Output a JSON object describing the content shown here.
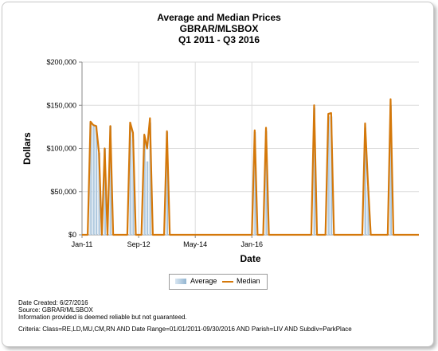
{
  "title_lines": [
    "Average and Median Prices",
    "GBRAR/MLSBOX",
    "Q1 2011 - Q3 2016"
  ],
  "chart_data": {
    "type": "bar",
    "title": "Average and Median Prices",
    "subtitle": [
      "GBRAR/MLSBOX",
      "Q1 2011 - Q3 2016"
    ],
    "xlabel": "Date",
    "ylabel": "Dollars",
    "ylim": [
      0,
      200000
    ],
    "y_ticks": [
      "$0",
      "$50,000",
      "$100,000",
      "$150,000",
      "$200,000"
    ],
    "x_ticks": [
      "Jan-11",
      "Sep-12",
      "May-14",
      "Jan-16"
    ],
    "grid": true,
    "legend_position": "bottom",
    "period_start": "Jan-11",
    "months_per_step": 1,
    "series": [
      {
        "name": "Average",
        "style": "bar",
        "color": "#93b5d1",
        "values": [
          0,
          0,
          0,
          130000,
          126000,
          126000,
          95000,
          0,
          100000,
          0,
          126000,
          0,
          0,
          0,
          0,
          0,
          0,
          127000,
          110000,
          0,
          0,
          0,
          115000,
          85000,
          130000,
          0,
          0,
          0,
          0,
          0,
          119000,
          0,
          0,
          0,
          0,
          0,
          0,
          0,
          0,
          0,
          0,
          0,
          0,
          0,
          0,
          0,
          0,
          0,
          0,
          0,
          0,
          0,
          0,
          0,
          0,
          0,
          0,
          0,
          0,
          0,
          0,
          119000,
          0,
          0,
          0,
          120000,
          0,
          0,
          0,
          0,
          0,
          0,
          0,
          0,
          0,
          0,
          0,
          0,
          0,
          0,
          0,
          0,
          147000,
          0,
          0,
          0,
          0,
          137000,
          137000,
          0,
          0,
          0,
          0,
          0,
          0,
          0,
          0,
          0,
          0,
          0,
          124000,
          55000,
          0,
          0,
          0,
          0,
          0,
          0,
          0,
          150000,
          0,
          0,
          0,
          0,
          0,
          0,
          0,
          0,
          0,
          0
        ]
      },
      {
        "name": "Median",
        "style": "line",
        "color": "#d4780a",
        "values": [
          0,
          0,
          0,
          131000,
          127000,
          126000,
          95000,
          0,
          100000,
          0,
          126000,
          0,
          0,
          0,
          0,
          0,
          0,
          130000,
          118000,
          0,
          0,
          0,
          116000,
          100000,
          135000,
          0,
          0,
          0,
          0,
          0,
          120000,
          0,
          0,
          0,
          0,
          0,
          0,
          0,
          0,
          0,
          0,
          0,
          0,
          0,
          0,
          0,
          0,
          0,
          0,
          0,
          0,
          0,
          0,
          0,
          0,
          0,
          0,
          0,
          0,
          0,
          0,
          121000,
          0,
          0,
          0,
          124000,
          0,
          0,
          0,
          0,
          0,
          0,
          0,
          0,
          0,
          0,
          0,
          0,
          0,
          0,
          0,
          0,
          150000,
          0,
          0,
          0,
          0,
          140000,
          141000,
          0,
          0,
          0,
          0,
          0,
          0,
          0,
          0,
          0,
          0,
          0,
          129000,
          60000,
          0,
          0,
          0,
          0,
          0,
          0,
          0,
          157000,
          0,
          0,
          0,
          0,
          0,
          0,
          0,
          0,
          0,
          0
        ]
      }
    ]
  },
  "legend": {
    "average": "Average",
    "median": "Median"
  },
  "footer": {
    "date_created": "Date Created: 6/27/2016",
    "source": "Source: GBRAR/MLSBOX",
    "disclaimer": "Information provided is deemed reliable but not guaranteed.",
    "criteria": "Criteria: Class=RE,LD,MU,CM,RN AND Date Range=01/01/2011-09/30/2016 AND Parish=LIV AND Subdiv=ParkPlace"
  }
}
